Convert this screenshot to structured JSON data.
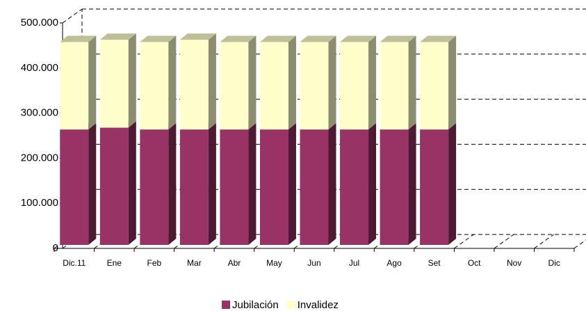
{
  "chart_data": {
    "type": "bar3d_stacked",
    "categories": [
      "Dic.11",
      "Ene",
      "Feb",
      "Mar",
      "Abr",
      "May",
      "Jun",
      "Jul",
      "Ago",
      "Set",
      "Oct",
      "Nov",
      "Dic"
    ],
    "series": [
      {
        "name": "Jubilación",
        "color": "#993366",
        "values": [
          256000,
          260000,
          256000,
          256000,
          256000,
          256000,
          256000,
          256000,
          256000,
          256000,
          null,
          null,
          null
        ]
      },
      {
        "name": "Invalidez",
        "color": "#ffffcc",
        "values": [
          194000,
          195000,
          194000,
          199000,
          194000,
          194000,
          194000,
          194000,
          194000,
          194000,
          null,
          null,
          null
        ]
      }
    ],
    "ylim": [
      0,
      500000
    ],
    "yticks": [
      0,
      {
        "value": 100000,
        "label": "100.000"
      },
      {
        "value": 200000,
        "label": "200.000"
      },
      {
        "value": 300000,
        "label": "300.000"
      },
      {
        "value": 400000,
        "label": "400.000"
      },
      {
        "value": 500000,
        "label": "500.000"
      }
    ],
    "grid": true,
    "legend": "bottom"
  }
}
